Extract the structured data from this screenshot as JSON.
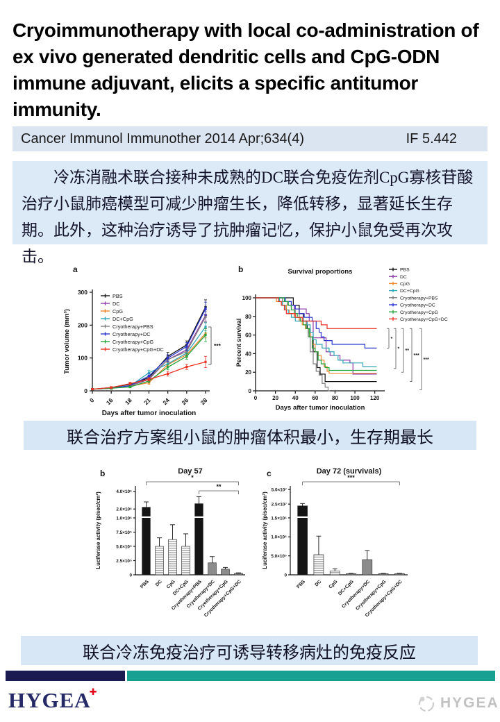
{
  "page": {
    "title": "Cryoimmunotherapy with local co-administration of ex vivo generated dendritic cells and CpG-ODN immune adjuvant, elicits a specific antitumor immunity.",
    "journal": {
      "citation": "Cancer Immunol Immunother 2014 Apr;634(4)",
      "impact_factor": "IF 5.442"
    },
    "abstract_cn": "冷冻消融术联合接种未成熟的DC联合免疫佐剂CpG寡核苷酸治疗小鼠肺癌模型可减少肿瘤生长，降低转移，显著延长生存期。此外，这种治疗诱导了抗肿瘤记忆，保护小鼠免受再次攻击。",
    "captions": {
      "tumor": "联合治疗方案组小鼠的肿瘤体积最小，生存期最长",
      "immune": "联合冷冻免疫治疗可诱导转移病灶的免疫反应"
    },
    "footer": {
      "logo_text": "HYGEA",
      "logo_cross_glyph": "✚",
      "watermark_text": "HYGEA"
    },
    "colors": {
      "journal_bar_bg": "#dbe5f1",
      "abstract_bg": "#dce9f6",
      "caption_bg": "#d7e7f6",
      "divider_navy": "#1b1b52",
      "divider_teal": "#18a093",
      "logo_navy": "#252a66",
      "logo_red": "#e3001b",
      "watermark_gray": "#8f8f8f"
    }
  },
  "chart_data": [
    {
      "id": "tumor-volume",
      "type": "line",
      "panel_label": "a",
      "xlabel": "Days after tumor inoculation",
      "ylabel": "Tumor volume (mm³)",
      "x_ticks": [
        "0",
        "16",
        "18",
        "21",
        "24",
        "26",
        "28"
      ],
      "y_ticks": [
        0,
        100,
        200,
        300
      ],
      "ylim": [
        0,
        300
      ],
      "grid": false,
      "legend_position": "inside-top-left",
      "significance": "***",
      "series": [
        {
          "name": "PBS",
          "color": "#111111",
          "values": [
            5,
            10,
            20,
            40,
            105,
            140,
            255
          ],
          "err": [
            2,
            3,
            4,
            6,
            12,
            12,
            22
          ]
        },
        {
          "name": "DC",
          "color": "#8e3aa8",
          "values": [
            5,
            8,
            15,
            35,
            95,
            125,
            230
          ],
          "err": [
            2,
            3,
            4,
            6,
            9,
            11,
            18
          ]
        },
        {
          "name": "CpG",
          "color": "#f0862c",
          "values": [
            5,
            8,
            14,
            25,
            80,
            110,
            175
          ],
          "err": [
            2,
            3,
            4,
            5,
            8,
            10,
            14
          ]
        },
        {
          "name": "DC+CpG",
          "color": "#30a5b8",
          "values": [
            5,
            8,
            15,
            55,
            82,
            115,
            195
          ],
          "err": [
            2,
            3,
            4,
            8,
            8,
            10,
            12
          ]
        },
        {
          "name": "Cryotherapy+PBS",
          "color": "#7f7f7f",
          "values": [
            5,
            8,
            15,
            38,
            95,
            120,
            225
          ],
          "err": [
            2,
            3,
            4,
            6,
            9,
            11,
            16
          ]
        },
        {
          "name": "Cryotherapy+DC",
          "color": "#2a35cf",
          "values": [
            5,
            8,
            16,
            45,
            100,
            135,
            250
          ],
          "err": [
            2,
            3,
            4,
            6,
            10,
            12,
            20
          ]
        },
        {
          "name": "Cryotherapy+CpG",
          "color": "#22a43b",
          "values": [
            5,
            8,
            12,
            30,
            72,
            105,
            170
          ],
          "err": [
            2,
            3,
            3,
            5,
            8,
            9,
            20
          ]
        },
        {
          "name": "Cryotherapy+CpG+DC",
          "color": "#ea3223",
          "values": [
            5,
            10,
            22,
            35,
            52,
            73,
            88
          ],
          "err": [
            2,
            3,
            4,
            5,
            7,
            8,
            17
          ]
        }
      ]
    },
    {
      "id": "survival",
      "type": "km",
      "panel_label": "b",
      "title": "Survival proportions",
      "xlabel": "Days after tumor inoculation",
      "ylabel": "Percent survival",
      "x_ticks": [
        0,
        20,
        40,
        60,
        80,
        100,
        120
      ],
      "y_ticks": [
        0,
        20,
        40,
        60,
        80,
        100
      ],
      "xlim": [
        0,
        130
      ],
      "ylim": [
        0,
        100
      ],
      "grid": false,
      "legend_position": "right",
      "significance": [
        "*",
        "*",
        "**",
        "***",
        "***"
      ],
      "sig_bracket_top_value": 67,
      "sig_bracket_bottom_values": [
        46,
        24,
        20,
        10,
        1
      ],
      "series": [
        {
          "name": "PBS",
          "color": "#111111",
          "end": 122,
          "drops": [
            [
              38,
              92
            ],
            [
              44,
              83
            ],
            [
              48,
              75
            ],
            [
              52,
              67
            ],
            [
              55,
              58
            ],
            [
              58,
              42
            ],
            [
              62,
              25
            ],
            [
              65,
              18
            ],
            [
              70,
              10
            ]
          ]
        },
        {
          "name": "DC",
          "color": "#8e3aa8",
          "end": 122,
          "drops": [
            [
              30,
              96
            ],
            [
              36,
              92
            ],
            [
              39,
              88
            ],
            [
              51,
              83
            ],
            [
              54,
              75
            ],
            [
              58,
              57
            ],
            [
              71,
              42
            ],
            [
              75,
              38
            ],
            [
              85,
              33
            ],
            [
              95,
              30
            ],
            [
              98,
              18
            ]
          ]
        },
        {
          "name": "CpG",
          "color": "#f0862c",
          "end": 122,
          "drops": [
            [
              21,
              96
            ],
            [
              26,
              92
            ],
            [
              31,
              87
            ],
            [
              34,
              83
            ],
            [
              39,
              79
            ],
            [
              44,
              75
            ],
            [
              47,
              71
            ],
            [
              50,
              67
            ],
            [
              53,
              63
            ],
            [
              55,
              58
            ],
            [
              57,
              50
            ],
            [
              60,
              42
            ],
            [
              63,
              38
            ],
            [
              66,
              33
            ],
            [
              69,
              26
            ],
            [
              72,
              21
            ],
            [
              74,
              19
            ]
          ]
        },
        {
          "name": "DC+CpG",
          "color": "#30a5b8",
          "end": 122,
          "drops": [
            [
              24,
              96
            ],
            [
              27,
              92
            ],
            [
              30,
              87
            ],
            [
              33,
              83
            ],
            [
              36,
              79
            ],
            [
              40,
              75
            ],
            [
              52,
              71
            ],
            [
              55,
              63
            ],
            [
              58,
              55
            ],
            [
              61,
              50
            ],
            [
              67,
              46
            ],
            [
              74,
              42
            ],
            [
              79,
              38
            ],
            [
              83,
              33
            ],
            [
              88,
              30
            ],
            [
              108,
              26
            ]
          ]
        },
        {
          "name": "Cryotherapy+PBS",
          "color": "#7f7f7f",
          "end": 75,
          "drops": [
            [
              27,
              96
            ],
            [
              32,
              92
            ],
            [
              36,
              87
            ],
            [
              40,
              83
            ],
            [
              44,
              79
            ],
            [
              48,
              75
            ],
            [
              51,
              67
            ],
            [
              53,
              58
            ],
            [
              55,
              42
            ],
            [
              58,
              29
            ],
            [
              61,
              21
            ],
            [
              64,
              17
            ],
            [
              67,
              8
            ],
            [
              70,
              4
            ],
            [
              73,
              0
            ]
          ]
        },
        {
          "name": "Cryotherapy+DC",
          "color": "#2a35cf",
          "end": 122,
          "drops": [
            [
              30,
              96
            ],
            [
              36,
              92
            ],
            [
              40,
              88
            ],
            [
              44,
              83
            ],
            [
              49,
              79
            ],
            [
              57,
              75
            ],
            [
              61,
              67
            ],
            [
              64,
              63
            ],
            [
              66,
              58
            ],
            [
              69,
              54
            ],
            [
              77,
              50
            ],
            [
              110,
              46
            ]
          ]
        },
        {
          "name": "Cryotherapy+CpG",
          "color": "#22a43b",
          "end": 122,
          "drops": [
            [
              29,
              96
            ],
            [
              33,
              92
            ],
            [
              36,
              87
            ],
            [
              39,
              83
            ],
            [
              42,
              79
            ],
            [
              45,
              75
            ],
            [
              48,
              71
            ],
            [
              51,
              67
            ],
            [
              54,
              58
            ],
            [
              57,
              46
            ],
            [
              60,
              42
            ],
            [
              63,
              33
            ],
            [
              66,
              29
            ],
            [
              70,
              25
            ],
            [
              74,
              22
            ]
          ]
        },
        {
          "name": "Cryotherapy+CpG+DC",
          "color": "#ea3223",
          "end": 122,
          "drops": [
            [
              23,
              96
            ],
            [
              26,
              92
            ],
            [
              29,
              87
            ],
            [
              31,
              83
            ],
            [
              40,
              79
            ],
            [
              47,
              75
            ],
            [
              66,
              71
            ],
            [
              72,
              67
            ]
          ]
        }
      ]
    },
    {
      "id": "day57",
      "type": "bar",
      "panel_label": "b",
      "title": "Day 57",
      "ylabel": "Luciferase activity (p/sec/cm²)",
      "categories": [
        "PBS",
        "DC",
        "CpG",
        "DC+CpG",
        "Cryotherapy+PBS",
        "Cryotherapy+DC",
        "Cryotherapy+CpG",
        "Cryotherapy+CpG+DC"
      ],
      "values": [
        2200000,
        500000,
        620000,
        500000,
        2600000,
        210000,
        100000,
        25000
      ],
      "errors": [
        600000,
        150000,
        260000,
        220000,
        800000,
        110000,
        30000,
        10000
      ],
      "styles": [
        "solid-black",
        "stripes",
        "stripes",
        "stripes",
        "solid-black",
        "solid-gray",
        "solid-gray",
        "solid-gray"
      ],
      "y_ticks_lower": [
        [
          0,
          "0"
        ],
        [
          250000,
          "2.5×10⁵"
        ],
        [
          500000,
          "5.0×10⁵"
        ],
        [
          750000,
          "7.5×10⁵"
        ],
        [
          1000000,
          "1.0×10⁶"
        ]
      ],
      "y_ticks_upper": [
        [
          2000000,
          "2.0×10⁶"
        ],
        [
          4000000,
          "4.0×10⁶"
        ]
      ],
      "break_value": 1000000,
      "max_value": 4600000,
      "sig": [
        {
          "label": "*",
          "from": 0,
          "to": 7
        },
        {
          "label": "**",
          "from": 4,
          "to": 7
        }
      ],
      "geom": {
        "pl": 67,
        "pr": 225
      }
    },
    {
      "id": "day72",
      "type": "bar",
      "panel_label": "c",
      "title": "Day 72 (survivals)",
      "ylabel": "Luciferase activity (p/sec/cm²)",
      "categories": [
        "PBS",
        "DC",
        "CpG",
        "DC+CpG",
        "Cryotherapy+DC",
        "Cryotherapy+CpG",
        "Cryotherapy+CpG+DC"
      ],
      "values": [
        22000000,
        530000,
        100000,
        30000,
        400000,
        30000,
        30000
      ],
      "errors": [
        4000000,
        490000,
        60000,
        10000,
        240000,
        10000,
        10000
      ],
      "styles": [
        "solid-black",
        "stripes",
        "stripes",
        "solid-gray",
        "solid-gray",
        "solid-gray",
        "solid-gray"
      ],
      "y_ticks_lower": [
        [
          0,
          "0"
        ],
        [
          500000,
          "5.0×10⁵"
        ],
        [
          1000000,
          "1.0×10⁶"
        ],
        [
          1500000,
          "1.5×10⁶"
        ]
      ],
      "y_ticks_upper": [
        [
          25000000,
          "2.5×10⁷"
        ],
        [
          50000000,
          "5.0×10⁷"
        ]
      ],
      "break_value": 1500000,
      "max_value": 56000000,
      "sig": [
        {
          "label": "***",
          "from": 0,
          "to": 6
        }
      ],
      "geom": {
        "pl": 50,
        "pr": 219
      }
    }
  ]
}
